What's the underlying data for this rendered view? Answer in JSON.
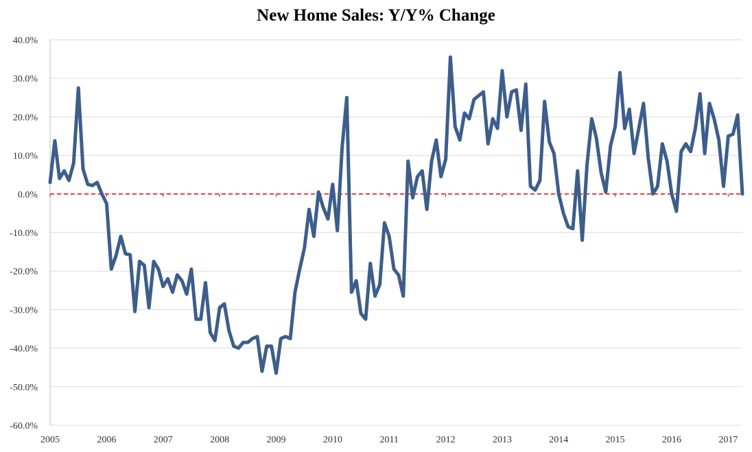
{
  "chart_data": {
    "type": "line",
    "title": "New Home Sales: Y/Y% Change",
    "xlabel": "",
    "ylabel": "",
    "y_ticks": [
      "40.0%",
      "30.0%",
      "20.0%",
      "10.0%",
      "0.0%",
      "-10.0%",
      "-20.0%",
      "-30.0%",
      "-40.0%",
      "-50.0%",
      "-60.0%"
    ],
    "x_ticks": [
      "2005",
      "2006",
      "2007",
      "2008",
      "2009",
      "2010",
      "2011",
      "2012",
      "2013",
      "2014",
      "2015",
      "2016",
      "2017"
    ],
    "ylim": [
      -60,
      40
    ],
    "xlim": [
      "2005-01",
      "2017-04"
    ],
    "grid": "horizontal",
    "line_color": "#3D5E8C",
    "reference_line": {
      "y": 0,
      "style": "dashed",
      "color": "#E0191B"
    },
    "series": [
      {
        "x": [
          "2005-01",
          "2005-02",
          "2005-03",
          "2005-04",
          "2005-05",
          "2005-06",
          "2005-07",
          "2005-08",
          "2005-09",
          "2005-10",
          "2005-11",
          "2005-12",
          "2006-01",
          "2006-02",
          "2006-03",
          "2006-04",
          "2006-05",
          "2006-06",
          "2006-07",
          "2006-08",
          "2006-09",
          "2006-10",
          "2006-11",
          "2006-12",
          "2007-01",
          "2007-02",
          "2007-03",
          "2007-04",
          "2007-05",
          "2007-06",
          "2007-07",
          "2007-08",
          "2007-09",
          "2007-10",
          "2007-11",
          "2007-12",
          "2008-01",
          "2008-02",
          "2008-03",
          "2008-04",
          "2008-05",
          "2008-06",
          "2008-07",
          "2008-08",
          "2008-09",
          "2008-10",
          "2008-11",
          "2008-12",
          "2009-01",
          "2009-02",
          "2009-03",
          "2009-04",
          "2009-05",
          "2009-06",
          "2009-07",
          "2009-08",
          "2009-09",
          "2009-10",
          "2009-11",
          "2009-12",
          "2010-01",
          "2010-02",
          "2010-03",
          "2010-04",
          "2010-05",
          "2010-06",
          "2010-07",
          "2010-08",
          "2010-09",
          "2010-10",
          "2010-11",
          "2010-12",
          "2011-01",
          "2011-02",
          "2011-03",
          "2011-04",
          "2011-05",
          "2011-06",
          "2011-07",
          "2011-08",
          "2011-09",
          "2011-10",
          "2011-11",
          "2011-12",
          "2012-01",
          "2012-02",
          "2012-03",
          "2012-04",
          "2012-05",
          "2012-06",
          "2012-07",
          "2012-08",
          "2012-09",
          "2012-10",
          "2012-11",
          "2012-12",
          "2013-01",
          "2013-02",
          "2013-03",
          "2013-04",
          "2013-05",
          "2013-06",
          "2013-07",
          "2013-08",
          "2013-09",
          "2013-10",
          "2013-11",
          "2013-12",
          "2014-01",
          "2014-02",
          "2014-03",
          "2014-04",
          "2014-05",
          "2014-06",
          "2014-07",
          "2014-08",
          "2014-09",
          "2014-10",
          "2014-11",
          "2014-12",
          "2015-01",
          "2015-02",
          "2015-03",
          "2015-04",
          "2015-05",
          "2015-06",
          "2015-07",
          "2015-08",
          "2015-09",
          "2015-10",
          "2015-11",
          "2015-12",
          "2016-01",
          "2016-02",
          "2016-03",
          "2016-04",
          "2016-05",
          "2016-06",
          "2016-07",
          "2016-08",
          "2016-09",
          "2016-10",
          "2016-11",
          "2016-12",
          "2017-01",
          "2017-02",
          "2017-03",
          "2017-04"
        ],
        "values": [
          3.0,
          13.8,
          4.0,
          6.0,
          3.5,
          8.0,
          27.5,
          6.5,
          2.5,
          2.2,
          3.0,
          0.0,
          -2.5,
          -19.5,
          -16.0,
          -11.0,
          -15.5,
          -15.8,
          -30.5,
          -17.5,
          -18.5,
          -29.5,
          -17.5,
          -19.5,
          -24.0,
          -22.0,
          -25.5,
          -21.0,
          -22.5,
          -26.0,
          -19.5,
          -32.5,
          -32.5,
          -23.0,
          -36.0,
          -38.0,
          -29.5,
          -28.5,
          -35.5,
          -39.5,
          -40.0,
          -38.5,
          -38.5,
          -37.5,
          -37.0,
          -46.0,
          -39.5,
          -39.5,
          -46.5,
          -37.5,
          -37.0,
          -37.5,
          -25.5,
          -19.5,
          -14.0,
          -4.0,
          -11.0,
          0.5,
          -3.5,
          -6.5,
          2.5,
          -9.5,
          12.0,
          25.0,
          -25.5,
          -22.5,
          -31.0,
          -32.5,
          -18.0,
          -26.5,
          -23.5,
          -7.5,
          -11.0,
          -19.5,
          -21.0,
          -26.5,
          8.5,
          -1.0,
          4.5,
          6.0,
          -4.0,
          8.5,
          14.0,
          4.5,
          9.0,
          35.5,
          17.5,
          14.0,
          21.0,
          19.5,
          24.5,
          25.5,
          26.5,
          13.0,
          19.5,
          17.0,
          32.0,
          20.0,
          26.5,
          27.0,
          16.5,
          28.5,
          2.0,
          1.0,
          3.5,
          24.0,
          13.5,
          10.5,
          0.0,
          -5.0,
          -8.5,
          -9.0,
          6.0,
          -12.0,
          7.5,
          19.5,
          14.5,
          5.5,
          0.5,
          12.5,
          17.5,
          31.5,
          17.0,
          22.0,
          10.5,
          17.0,
          23.5,
          9.5,
          0.0,
          2.0,
          13.0,
          8.5,
          0.0,
          -4.5,
          11.0,
          13.0,
          11.0,
          17.0,
          26.0,
          10.5,
          23.5,
          19.5,
          14.0,
          2.0,
          15.0,
          15.5,
          20.5,
          0.0
        ]
      }
    ]
  }
}
